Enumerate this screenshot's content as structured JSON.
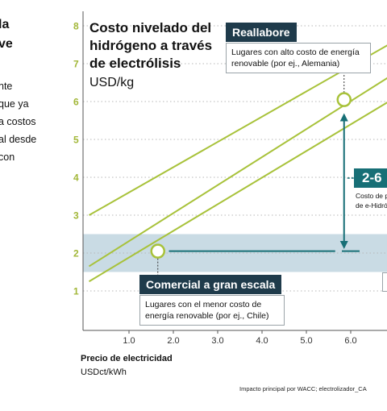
{
  "left_text": {
    "heading_lines": [
      "la",
      "ve"
    ],
    "body_lines": [
      "nte",
      "que ya",
      "a costos",
      "al desde",
      "con"
    ]
  },
  "chart_data": {
    "type": "line",
    "title_lines": [
      "Costo nivelado del",
      "hidrógeno a través",
      "de electrólisis"
    ],
    "unit": "USD/kg",
    "xlabel": "Precio de electricidad",
    "xunit": "USDct/kWh",
    "x_ticks": [
      "1.0",
      "2.0",
      "3.0",
      "4.0",
      "5.0",
      "6.0"
    ],
    "y_ticks": [
      "1",
      "2",
      "3",
      "4",
      "5",
      "6",
      "7",
      "8"
    ],
    "xlim": [
      0.1,
      7.0
    ],
    "ylim": [
      0.5,
      8.2
    ],
    "band": [
      1.5,
      2.5
    ],
    "series": [
      {
        "points": [
          [
            0.1,
            3.0
          ],
          [
            7.0,
            7.6
          ]
        ]
      },
      {
        "points": [
          [
            0.1,
            1.65
          ],
          [
            7.0,
            6.75
          ]
        ]
      },
      {
        "points": [
          [
            0.1,
            1.25
          ],
          [
            7.0,
            6.1
          ]
        ]
      }
    ],
    "markers": [
      [
        1.65,
        2.05
      ],
      [
        5.85,
        6.05
      ]
    ],
    "arrow": {
      "x": 5.85,
      "y_from": 2.15,
      "y_to": 5.65
    },
    "dash_line": {
      "y": 2.05,
      "x_from": 1.9,
      "x_to": 5.65
    },
    "dash_segment": {
      "y": 2.05,
      "x_from": 5.8,
      "x_to": 6.2
    },
    "accent": "#176f76",
    "line_color": "#a8c23a",
    "band_color": "#c9dbe4",
    "grid": true
  },
  "callouts": {
    "top": {
      "title": "Reallabore",
      "lines": [
        "Lugares con alto costo de energía",
        "renovable (por ej., Alemania)"
      ]
    },
    "bottom": {
      "title": "Comercial a gran escala",
      "lines": [
        "Lugares con el menor costo de",
        "energía renovable (por ej., Chile)"
      ]
    }
  },
  "badge": {
    "text": "2-6",
    "lines": [
      "Costo de p",
      "de e-Hidró"
    ]
  },
  "footnote": "Impacto principal por WACC; electrolizador_CA"
}
